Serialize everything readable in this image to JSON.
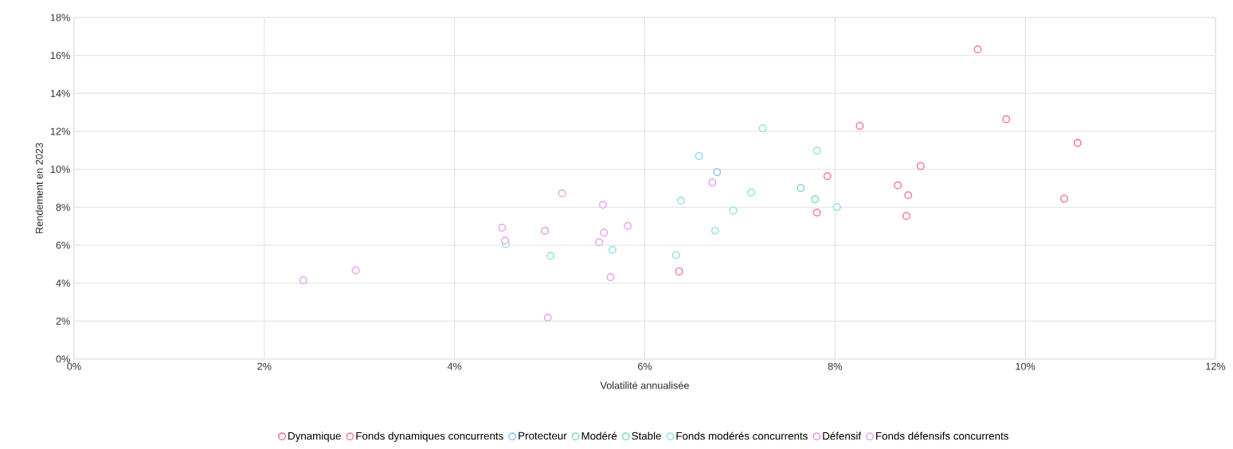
{
  "chart_data": {
    "type": "scatter",
    "xlabel": "Volatilité annualisée",
    "ylabel": "Rendement en 2023",
    "xlim": [
      0,
      12
    ],
    "ylim": [
      0,
      18
    ],
    "xticks": [
      {
        "value": 0,
        "label": "0%"
      },
      {
        "value": 2,
        "label": "2%"
      },
      {
        "value": 4,
        "label": "4%"
      },
      {
        "value": 6,
        "label": "6%"
      },
      {
        "value": 8,
        "label": "8%"
      },
      {
        "value": 10,
        "label": "10%"
      },
      {
        "value": 12,
        "label": "12%"
      }
    ],
    "yticks": [
      {
        "value": 0,
        "label": "0%"
      },
      {
        "value": 2,
        "label": "2%"
      },
      {
        "value": 4,
        "label": "4%"
      },
      {
        "value": 6,
        "label": "6%"
      },
      {
        "value": 8,
        "label": "8%"
      },
      {
        "value": 10,
        "label": "10%"
      },
      {
        "value": 12,
        "label": "12%"
      },
      {
        "value": 14,
        "label": "14%"
      },
      {
        "value": 16,
        "label": "16%"
      },
      {
        "value": 18,
        "label": "18%"
      }
    ],
    "grid": true,
    "legend": "bottom",
    "marker": "circle",
    "series": [
      {
        "name": "Dynamique",
        "color": "#f06e9b",
        "x": [
          10.55
        ],
        "values": [
          11.39
        ]
      },
      {
        "name": "Fonds dynamiques concurrents",
        "color": "#f27aa0",
        "x": [
          9.5,
          8.26,
          9.8,
          8.9,
          8.66,
          8.77,
          8.75,
          10.41,
          7.92,
          7.81,
          6.36
        ],
        "values": [
          16.32,
          12.28,
          12.64,
          10.17,
          9.16,
          8.63,
          7.54,
          8.45,
          9.64,
          7.72,
          4.62
        ]
      },
      {
        "name": "Protecteur",
        "color": "#8fbfef",
        "x": [
          6.76
        ],
        "values": [
          9.85
        ]
      },
      {
        "name": "Modéré",
        "color": "#7fd6dc",
        "x": [
          7.64
        ],
        "values": [
          9.01
        ]
      },
      {
        "name": "Stable",
        "color": "#7fdcb4",
        "x": [
          7.79
        ],
        "values": [
          8.42
        ]
      },
      {
        "name": "Fonds modérés concurrents",
        "color": "#8ee0e6",
        "x": [
          7.24,
          7.81,
          6.57,
          7.12,
          6.38,
          6.93,
          8.02,
          6.74,
          5.66,
          5.01,
          6.33,
          4.54
        ],
        "values": [
          12.16,
          10.98,
          10.7,
          8.78,
          8.35,
          7.83,
          8.01,
          6.77,
          5.75,
          5.43,
          5.48,
          6.06
        ]
      },
      {
        "name": "Défensif",
        "color": "#dd99dd",
        "x": [
          4.95
        ],
        "values": [
          6.76
        ]
      },
      {
        "name": "Fonds défensifs concurrents",
        "color": "#e6a3e6",
        "x": [
          5.13,
          5.56,
          6.71,
          4.5,
          4.53,
          5.57,
          5.82,
          5.52,
          2.41,
          2.96,
          4.98,
          5.64
        ],
        "values": [
          8.74,
          8.13,
          9.3,
          6.92,
          6.24,
          6.66,
          7.02,
          6.16,
          4.15,
          4.67,
          2.18,
          4.31
        ]
      }
    ]
  }
}
